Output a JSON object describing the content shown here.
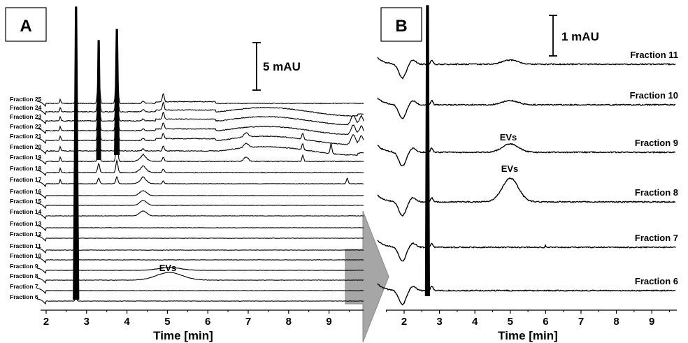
{
  "chart_data": [
    {
      "panel": "A",
      "type": "line",
      "xlabel": "Time [min]",
      "xticks": [
        "2",
        "3",
        "4",
        "5",
        "6",
        "7",
        "8",
        "9"
      ],
      "xlim": [
        1.9,
        9.95
      ],
      "scale_bar": "5 mAU",
      "grid": false,
      "series": [
        {
          "name": "Fraction 6"
        },
        {
          "name": "Fraction 7"
        },
        {
          "name": "Fraction 8"
        },
        {
          "name": "Fraction 9"
        },
        {
          "name": "Fraction 10"
        },
        {
          "name": "Fraction 11"
        },
        {
          "name": "Fraction 12"
        },
        {
          "name": "Fraction 13"
        },
        {
          "name": "Fraction 14"
        },
        {
          "name": "Fraction 15"
        },
        {
          "name": "Fraction 16"
        },
        {
          "name": "Fraction 17"
        },
        {
          "name": "Fraction 18"
        },
        {
          "name": "Fraction 19"
        },
        {
          "name": "Fraction 20"
        },
        {
          "name": "Fraction 21"
        },
        {
          "name": "Fraction 22"
        },
        {
          "name": "Fraction 23"
        },
        {
          "name": "Fraction 24"
        },
        {
          "name": "Fraction 25"
        }
      ],
      "annotations": [
        {
          "text": "EVs",
          "x": 5.0
        }
      ]
    },
    {
      "panel": "B",
      "type": "line",
      "xlabel": "Time [min]",
      "xticks": [
        "2",
        "3",
        "4",
        "5",
        "6",
        "7",
        "8",
        "9"
      ],
      "xlim": [
        1.3,
        9.75
      ],
      "scale_bar": "1 mAU",
      "grid": false,
      "series": [
        {
          "name": "Fraction 6"
        },
        {
          "name": "Fraction 7"
        },
        {
          "name": "Fraction 8"
        },
        {
          "name": "Fraction 9"
        },
        {
          "name": "Fraction 10"
        },
        {
          "name": "Fraction 11"
        }
      ],
      "annotations": [
        {
          "text": "EVs",
          "x": 5.0
        },
        {
          "text": "EVs",
          "x": 5.0
        }
      ]
    }
  ]
}
